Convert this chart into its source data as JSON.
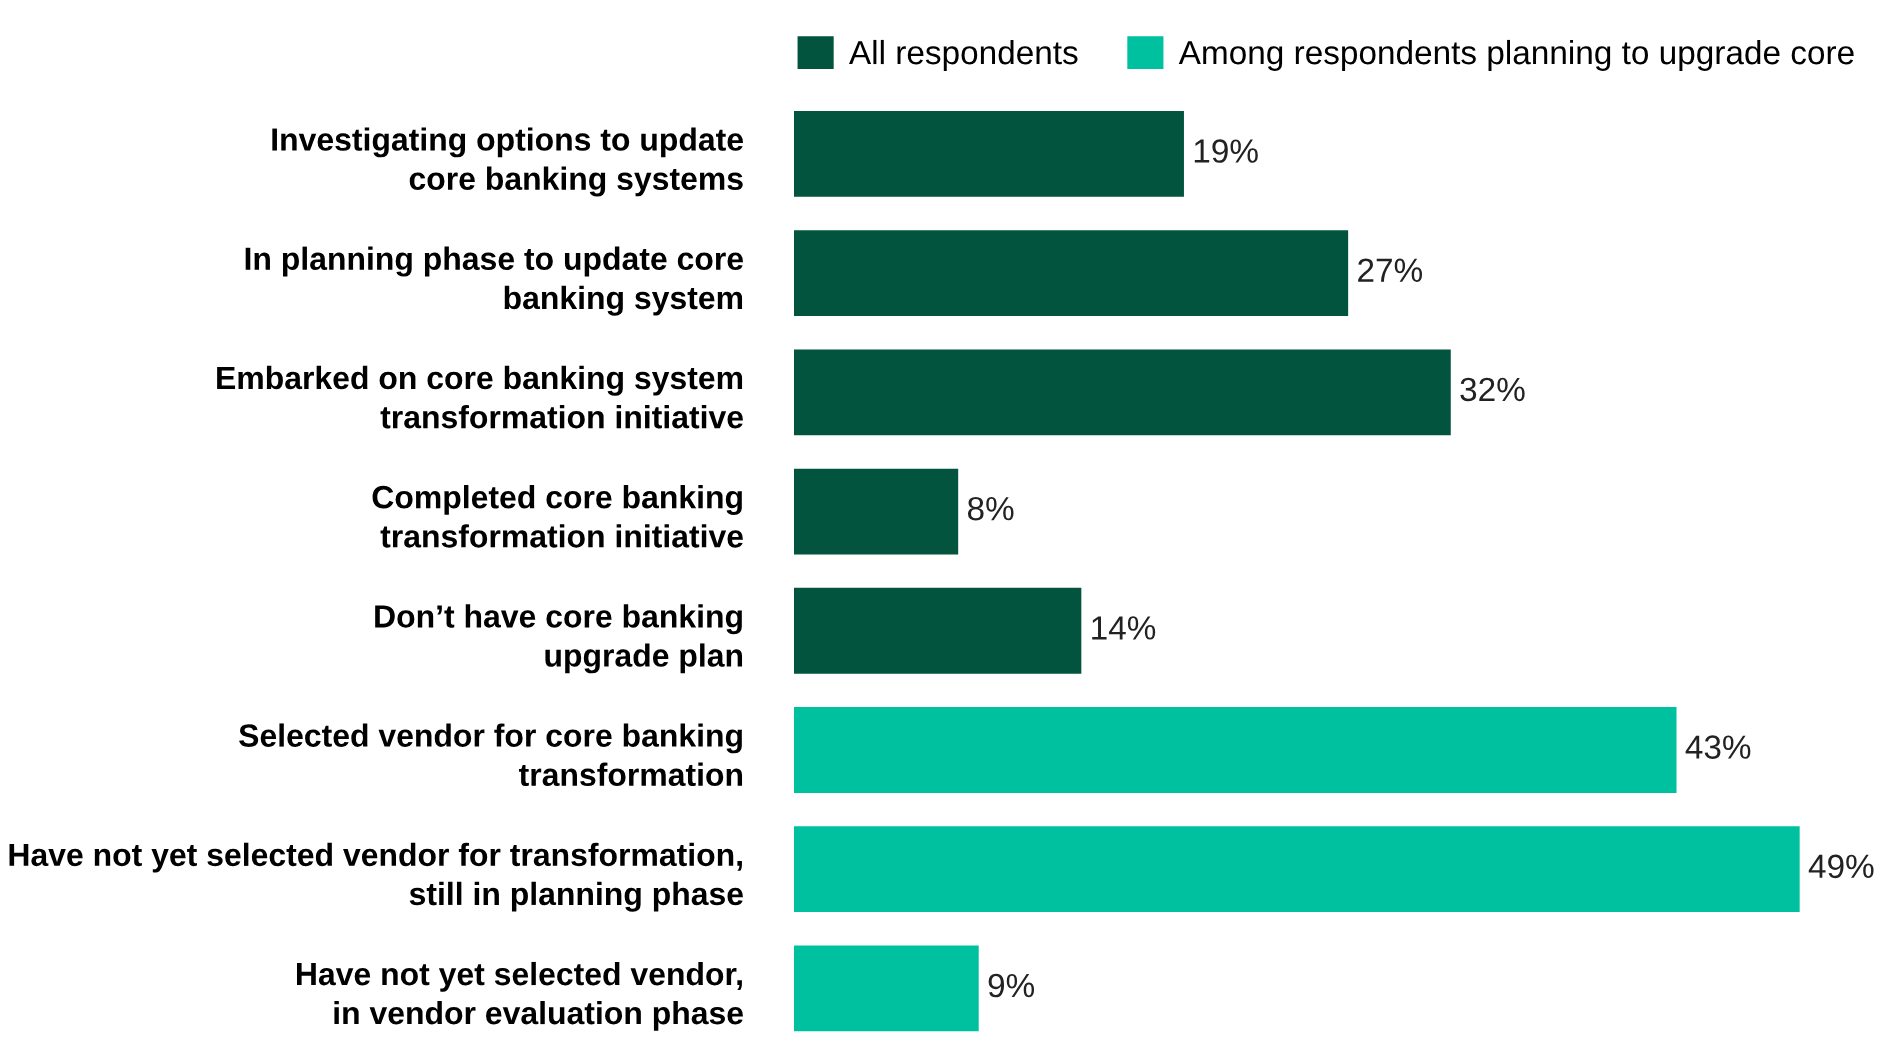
{
  "chart_data": {
    "type": "bar",
    "orientation": "horizontal",
    "categories": [
      "Investigating options to update\ncore banking systems",
      "In planning phase to update core\nbanking system",
      "Embarked on core banking system\ntransformation initiative",
      "Completed core banking\ntransformation initiative",
      "Don’t have core banking\nupgrade plan",
      "Selected vendor for core banking\ntransformation",
      "Have not yet selected vendor for transformation,\nstill in planning phase",
      "Have not yet selected vendor,\nin vendor evaluation phase"
    ],
    "series": [
      {
        "name": "All respondents",
        "color": "#03543f",
        "values": [
          19,
          27,
          32,
          8,
          14,
          null,
          null,
          null
        ],
        "value_labels": [
          "19%",
          "27%",
          "32%",
          "8%",
          "14%",
          null,
          null,
          null
        ]
      },
      {
        "name": "Among respondents planning to upgrade core",
        "color": "#00c19f",
        "values": [
          null,
          null,
          null,
          null,
          null,
          43,
          49,
          9
        ],
        "value_labels": [
          null,
          null,
          null,
          null,
          null,
          "43%",
          "49%",
          "9%"
        ]
      }
    ],
    "legend": "top",
    "grid": false
  }
}
